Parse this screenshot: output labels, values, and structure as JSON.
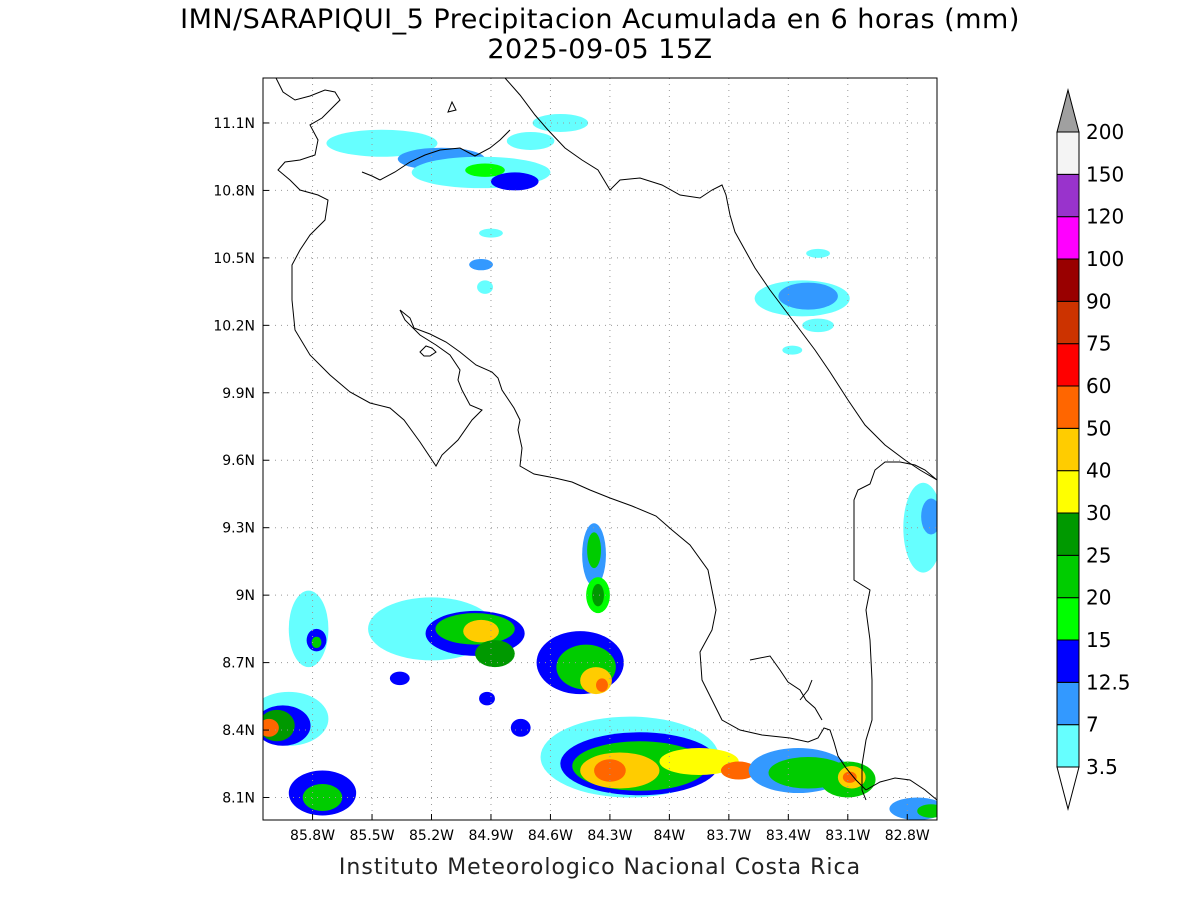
{
  "title": {
    "line1": "IMN/SARAPIQUI_5 Precipitacion Acumulada en 6 horas (mm)",
    "line2": "2025-09-05 15Z"
  },
  "footer": "Instituto Meteorologico Nacional Costa Rica",
  "map": {
    "lon_range": [
      -86.05,
      -82.65
    ],
    "lat_range": [
      8.0,
      11.3
    ],
    "x_ticks": [
      {
        "lon": -85.8,
        "label": "85.8W"
      },
      {
        "lon": -85.5,
        "label": "85.5W"
      },
      {
        "lon": -85.2,
        "label": "85.2W"
      },
      {
        "lon": -84.9,
        "label": "84.9W"
      },
      {
        "lon": -84.6,
        "label": "84.6W"
      },
      {
        "lon": -84.3,
        "label": "84.3W"
      },
      {
        "lon": -84.0,
        "label": "84W"
      },
      {
        "lon": -83.7,
        "label": "83.7W"
      },
      {
        "lon": -83.4,
        "label": "83.4W"
      },
      {
        "lon": -83.1,
        "label": "83.1W"
      },
      {
        "lon": -82.8,
        "label": "82.8W"
      }
    ],
    "y_ticks": [
      {
        "lat": 11.1,
        "label": "11.1N"
      },
      {
        "lat": 10.8,
        "label": "10.8N"
      },
      {
        "lat": 10.5,
        "label": "10.5N"
      },
      {
        "lat": 10.2,
        "label": "10.2N"
      },
      {
        "lat": 9.9,
        "label": "9.9N"
      },
      {
        "lat": 9.6,
        "label": "9.6N"
      },
      {
        "lat": 9.3,
        "label": "9.3N"
      },
      {
        "lat": 9.0,
        "label": "9N"
      },
      {
        "lat": 8.7,
        "label": "8.7N"
      },
      {
        "lat": 8.4,
        "label": "8.4N"
      },
      {
        "lat": 8.1,
        "label": "8.1N"
      }
    ],
    "grid": true
  },
  "colorbar": {
    "levels": [
      {
        "label": "3.5",
        "color": "#66ffff"
      },
      {
        "label": "7",
        "color": "#3399ff"
      },
      {
        "label": "12.5",
        "color": "#0000ff"
      },
      {
        "label": "15",
        "color": "#00ff00"
      },
      {
        "label": "20",
        "color": "#00cc00"
      },
      {
        "label": "25",
        "color": "#009900"
      },
      {
        "label": "30",
        "color": "#ffff00"
      },
      {
        "label": "40",
        "color": "#ffcc00"
      },
      {
        "label": "50",
        "color": "#ff6600"
      },
      {
        "label": "60",
        "color": "#ff0000"
      },
      {
        "label": "75",
        "color": "#cc3300"
      },
      {
        "label": "90",
        "color": "#990000"
      },
      {
        "label": "100",
        "color": "#ff00ff"
      },
      {
        "label": "120",
        "color": "#9933cc"
      },
      {
        "label": "150",
        "color": "#f4f4f4"
      },
      {
        "label": "200",
        "color": "#a0a0a0"
      }
    ]
  },
  "precip_cells": [
    {
      "lon": -85.45,
      "lat": 11.01,
      "rx": 0.28,
      "ry": 0.06,
      "level": 1
    },
    {
      "lon": -85.15,
      "lat": 10.94,
      "rx": 0.22,
      "ry": 0.05,
      "level": 2
    },
    {
      "lon": -84.95,
      "lat": 10.88,
      "rx": 0.35,
      "ry": 0.07,
      "level": 1
    },
    {
      "lon": -84.93,
      "lat": 10.89,
      "rx": 0.1,
      "ry": 0.03,
      "level": 4
    },
    {
      "lon": -84.78,
      "lat": 10.84,
      "rx": 0.12,
      "ry": 0.04,
      "level": 3
    },
    {
      "lon": -84.55,
      "lat": 11.1,
      "rx": 0.14,
      "ry": 0.04,
      "level": 1
    },
    {
      "lon": -84.7,
      "lat": 11.02,
      "rx": 0.12,
      "ry": 0.04,
      "level": 1
    },
    {
      "lon": -84.9,
      "lat": 10.61,
      "rx": 0.06,
      "ry": 0.02,
      "level": 1
    },
    {
      "lon": -84.95,
      "lat": 10.47,
      "rx": 0.06,
      "ry": 0.025,
      "level": 2
    },
    {
      "lon": -84.93,
      "lat": 10.37,
      "rx": 0.04,
      "ry": 0.03,
      "level": 1
    },
    {
      "lon": -83.33,
      "lat": 10.32,
      "rx": 0.24,
      "ry": 0.08,
      "level": 1
    },
    {
      "lon": -83.3,
      "lat": 10.33,
      "rx": 0.15,
      "ry": 0.06,
      "level": 2
    },
    {
      "lon": -83.25,
      "lat": 10.52,
      "rx": 0.06,
      "ry": 0.02,
      "level": 1
    },
    {
      "lon": -83.25,
      "lat": 10.2,
      "rx": 0.08,
      "ry": 0.03,
      "level": 1
    },
    {
      "lon": -83.38,
      "lat": 10.09,
      "rx": 0.05,
      "ry": 0.02,
      "level": 1
    },
    {
      "lon": -82.72,
      "lat": 9.3,
      "rx": 0.1,
      "ry": 0.2,
      "level": 1
    },
    {
      "lon": -82.68,
      "lat": 9.35,
      "rx": 0.05,
      "ry": 0.08,
      "level": 2
    },
    {
      "lon": -85.82,
      "lat": 8.85,
      "rx": 0.1,
      "ry": 0.17,
      "level": 1
    },
    {
      "lon": -85.78,
      "lat": 8.8,
      "rx": 0.05,
      "ry": 0.05,
      "level": 3
    },
    {
      "lon": -85.78,
      "lat": 8.79,
      "rx": 0.025,
      "ry": 0.025,
      "level": 5
    },
    {
      "lon": -85.2,
      "lat": 8.85,
      "rx": 0.32,
      "ry": 0.14,
      "level": 1
    },
    {
      "lon": -84.98,
      "lat": 8.83,
      "rx": 0.25,
      "ry": 0.1,
      "level": 3
    },
    {
      "lon": -84.98,
      "lat": 8.85,
      "rx": 0.2,
      "ry": 0.07,
      "level": 5
    },
    {
      "lon": -84.95,
      "lat": 8.84,
      "rx": 0.09,
      "ry": 0.05,
      "level": 8
    },
    {
      "lon": -84.88,
      "lat": 8.74,
      "rx": 0.1,
      "ry": 0.06,
      "level": 6
    },
    {
      "lon": -84.38,
      "lat": 9.18,
      "rx": 0.06,
      "ry": 0.14,
      "level": 2
    },
    {
      "lon": -84.38,
      "lat": 9.2,
      "rx": 0.035,
      "ry": 0.08,
      "level": 5
    },
    {
      "lon": -84.36,
      "lat": 9.0,
      "rx": 0.06,
      "ry": 0.08,
      "level": 4
    },
    {
      "lon": -84.36,
      "lat": 9.0,
      "rx": 0.03,
      "ry": 0.05,
      "level": 6
    },
    {
      "lon": -84.45,
      "lat": 8.7,
      "rx": 0.22,
      "ry": 0.14,
      "level": 3
    },
    {
      "lon": -84.42,
      "lat": 8.68,
      "rx": 0.15,
      "ry": 0.1,
      "level": 5
    },
    {
      "lon": -84.37,
      "lat": 8.62,
      "rx": 0.08,
      "ry": 0.06,
      "level": 8
    },
    {
      "lon": -84.34,
      "lat": 8.6,
      "rx": 0.03,
      "ry": 0.03,
      "level": 9
    },
    {
      "lon": -85.92,
      "lat": 8.45,
      "rx": 0.2,
      "ry": 0.12,
      "level": 1
    },
    {
      "lon": -85.95,
      "lat": 8.42,
      "rx": 0.14,
      "ry": 0.09,
      "level": 3
    },
    {
      "lon": -85.98,
      "lat": 8.42,
      "rx": 0.09,
      "ry": 0.07,
      "level": 6
    },
    {
      "lon": -86.02,
      "lat": 8.41,
      "rx": 0.05,
      "ry": 0.04,
      "level": 9
    },
    {
      "lon": -85.75,
      "lat": 8.12,
      "rx": 0.17,
      "ry": 0.1,
      "level": 3
    },
    {
      "lon": -85.75,
      "lat": 8.1,
      "rx": 0.1,
      "ry": 0.06,
      "level": 5
    },
    {
      "lon": -85.36,
      "lat": 8.63,
      "rx": 0.05,
      "ry": 0.03,
      "level": 3
    },
    {
      "lon": -84.92,
      "lat": 8.54,
      "rx": 0.04,
      "ry": 0.03,
      "level": 3
    },
    {
      "lon": -84.75,
      "lat": 8.41,
      "rx": 0.05,
      "ry": 0.04,
      "level": 3
    },
    {
      "lon": -84.2,
      "lat": 8.28,
      "rx": 0.45,
      "ry": 0.18,
      "level": 1
    },
    {
      "lon": -84.15,
      "lat": 8.25,
      "rx": 0.4,
      "ry": 0.14,
      "level": 3
    },
    {
      "lon": -84.15,
      "lat": 8.24,
      "rx": 0.34,
      "ry": 0.11,
      "level": 5
    },
    {
      "lon": -84.25,
      "lat": 8.22,
      "rx": 0.2,
      "ry": 0.08,
      "level": 8
    },
    {
      "lon": -84.3,
      "lat": 8.22,
      "rx": 0.08,
      "ry": 0.05,
      "level": 9
    },
    {
      "lon": -83.85,
      "lat": 8.26,
      "rx": 0.2,
      "ry": 0.06,
      "level": 7
    },
    {
      "lon": -83.65,
      "lat": 8.22,
      "rx": 0.09,
      "ry": 0.04,
      "level": 9
    },
    {
      "lon": -83.35,
      "lat": 8.22,
      "rx": 0.25,
      "ry": 0.1,
      "level": 2
    },
    {
      "lon": -83.3,
      "lat": 8.21,
      "rx": 0.2,
      "ry": 0.07,
      "level": 5
    },
    {
      "lon": -83.1,
      "lat": 8.18,
      "rx": 0.14,
      "ry": 0.08,
      "level": 5
    },
    {
      "lon": -83.08,
      "lat": 8.19,
      "rx": 0.07,
      "ry": 0.05,
      "level": 8
    },
    {
      "lon": -83.09,
      "lat": 8.19,
      "rx": 0.035,
      "ry": 0.025,
      "level": 9
    },
    {
      "lon": -82.75,
      "lat": 8.05,
      "rx": 0.14,
      "ry": 0.05,
      "level": 2
    },
    {
      "lon": -82.68,
      "lat": 8.04,
      "rx": 0.07,
      "ry": 0.03,
      "level": 5
    }
  ]
}
